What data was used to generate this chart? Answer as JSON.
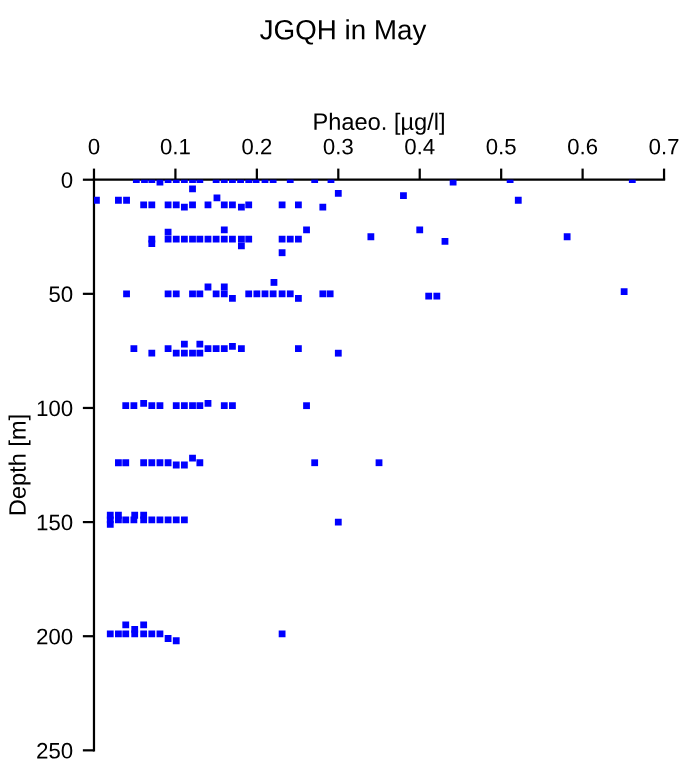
{
  "chart_data": {
    "type": "scatter",
    "title": "JGQH in May",
    "xlabel": "Phaeo. [µg/l]",
    "ylabel": "Depth [m]",
    "xlim": [
      0,
      0.7
    ],
    "xticks": [
      0,
      0.1,
      0.2,
      0.3,
      0.4,
      0.5,
      0.6,
      0.7
    ],
    "ylim": [
      250,
      0
    ],
    "yticks": [
      0,
      50,
      100,
      150,
      200,
      250
    ],
    "marker": "square",
    "grid": false,
    "series": [
      {
        "color": "#0000ff",
        "x": [
          0.052,
          0.062,
          0.071,
          0.081,
          0.091,
          0.101,
          0.111,
          0.121,
          0.13,
          0.15,
          0.16,
          0.17,
          0.18,
          0.19,
          0.199,
          0.21,
          0.22,
          0.241,
          0.271,
          0.291,
          0.441,
          0.511,
          0.661,
          0.121,
          0.003,
          0.03,
          0.04,
          0.061,
          0.071,
          0.091,
          0.101,
          0.111,
          0.121,
          0.14,
          0.151,
          0.16,
          0.17,
          0.181,
          0.19,
          0.231,
          0.251,
          0.281,
          0.3,
          0.38,
          0.521,
          0.071,
          0.071,
          0.091,
          0.091,
          0.101,
          0.111,
          0.121,
          0.13,
          0.14,
          0.15,
          0.16,
          0.16,
          0.17,
          0.181,
          0.181,
          0.19,
          0.231,
          0.231,
          0.241,
          0.251,
          0.261,
          0.34,
          0.4,
          0.431,
          0.581,
          0.221,
          0.04,
          0.091,
          0.101,
          0.121,
          0.13,
          0.14,
          0.15,
          0.16,
          0.16,
          0.17,
          0.19,
          0.2,
          0.21,
          0.22,
          0.231,
          0.241,
          0.251,
          0.281,
          0.29,
          0.411,
          0.421,
          0.651,
          0.049,
          0.071,
          0.091,
          0.101,
          0.111,
          0.111,
          0.121,
          0.13,
          0.13,
          0.14,
          0.15,
          0.16,
          0.17,
          0.181,
          0.251,
          0.3,
          0.039,
          0.049,
          0.061,
          0.071,
          0.081,
          0.101,
          0.111,
          0.121,
          0.13,
          0.14,
          0.16,
          0.17,
          0.261,
          0.03,
          0.039,
          0.061,
          0.071,
          0.081,
          0.091,
          0.101,
          0.111,
          0.121,
          0.13,
          0.271,
          0.35,
          0.02,
          0.03,
          0.039,
          0.049,
          0.061,
          0.071,
          0.081,
          0.091,
          0.101,
          0.111,
          0.3,
          0.02,
          0.03,
          0.05,
          0.061,
          0.02,
          0.02,
          0.03,
          0.039,
          0.05,
          0.061,
          0.071,
          0.081,
          0.091,
          0.101,
          0.231,
          0.039,
          0.061,
          0.05
        ],
        "values": [
          0,
          0,
          0,
          1,
          0,
          0,
          0,
          0,
          0,
          0,
          0,
          0,
          0,
          0,
          0,
          0,
          0,
          0,
          0,
          0,
          1,
          0,
          0,
          4,
          9,
          9,
          9,
          11,
          11,
          11,
          11,
          12,
          11,
          11,
          8,
          11,
          11,
          12,
          11,
          11,
          11,
          12,
          6,
          7,
          9,
          26,
          28,
          26,
          23,
          26,
          26,
          26,
          26,
          26,
          26,
          26,
          22,
          26,
          26,
          29,
          26,
          26,
          32,
          26,
          26,
          22,
          25,
          22,
          27,
          25,
          45,
          50,
          50,
          50,
          50,
          50,
          47,
          50,
          50,
          47,
          52,
          50,
          50,
          50,
          50,
          50,
          50,
          52,
          50,
          50,
          51,
          51,
          49,
          74,
          76,
          74,
          76,
          76,
          72,
          76,
          76,
          72,
          74,
          74,
          74,
          73,
          74,
          74,
          76,
          99,
          99,
          98,
          99,
          99,
          99,
          99,
          99,
          99,
          98,
          99,
          99,
          99,
          124,
          124,
          124,
          124,
          124,
          124,
          125,
          125,
          122,
          124,
          124,
          124,
          149,
          149,
          149,
          149,
          149,
          149,
          149,
          149,
          149,
          149,
          150,
          147,
          147,
          147,
          147,
          151,
          199,
          199,
          199,
          199,
          199,
          199,
          199,
          201,
          202,
          199,
          195,
          195,
          197
        ]
      }
    ]
  }
}
